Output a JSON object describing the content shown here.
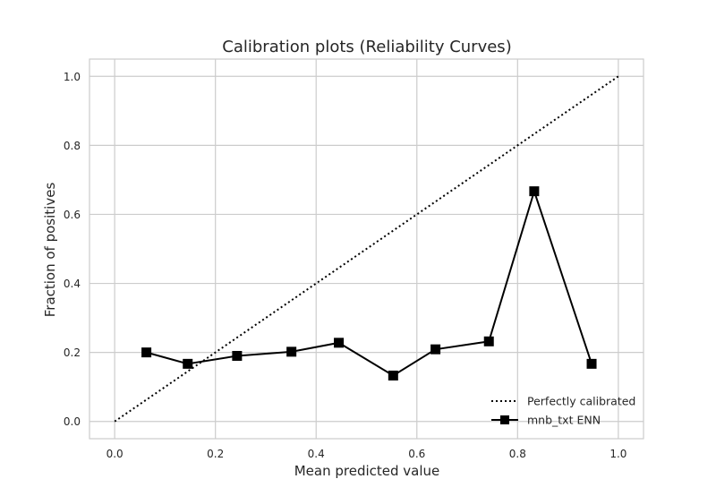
{
  "chart_data": {
    "type": "line",
    "title": "Calibration plots  (Reliability Curves)",
    "xlabel": "Mean predicted value",
    "ylabel": "Fraction of positives",
    "xlim": [
      -0.05,
      1.05
    ],
    "ylim": [
      -0.05,
      1.05
    ],
    "xticks": [
      0.0,
      0.2,
      0.4,
      0.6,
      0.8,
      1.0
    ],
    "xtick_labels": [
      "0.0",
      "0.2",
      "0.4",
      "0.6",
      "0.8",
      "1.0"
    ],
    "yticks": [
      0.0,
      0.2,
      0.4,
      0.6,
      0.8,
      1.0
    ],
    "ytick_labels": [
      "0.0",
      "0.2",
      "0.4",
      "0.6",
      "0.8",
      "1.0"
    ],
    "grid": true,
    "legend_position": "lower-right",
    "series": [
      {
        "name": "Perfectly calibrated",
        "style": "dotted",
        "color": "#000000",
        "marker": "none",
        "x": [
          0.0,
          1.0
        ],
        "y": [
          0.0,
          1.0
        ]
      },
      {
        "name": "mnb_txt ENN",
        "style": "solid",
        "color": "#000000",
        "marker": "square",
        "x": [
          0.063,
          0.145,
          0.243,
          0.351,
          0.445,
          0.553,
          0.637,
          0.743,
          0.833,
          0.947
        ],
        "y": [
          0.2,
          0.167,
          0.19,
          0.202,
          0.228,
          0.133,
          0.209,
          0.232,
          0.667,
          0.167
        ]
      }
    ]
  }
}
